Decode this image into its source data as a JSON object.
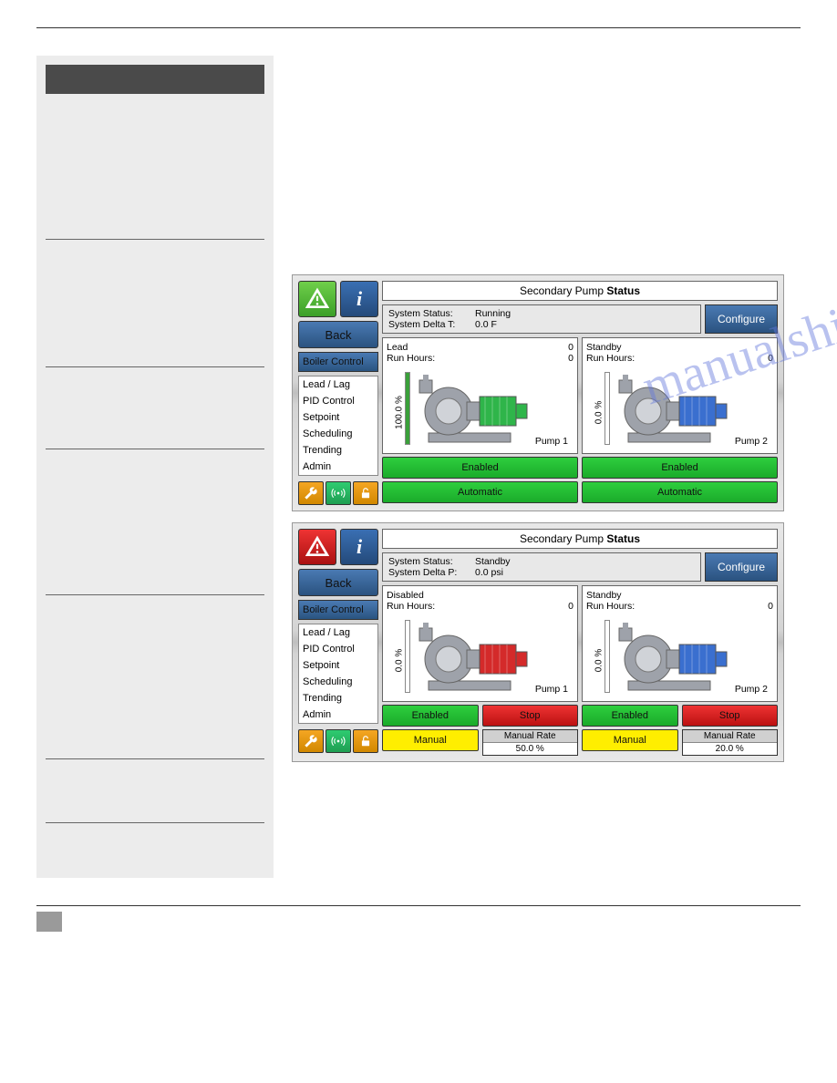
{
  "colors": {
    "panel_bg_metal": "#d4d4d4",
    "btn_blue": "#3a6fb3",
    "btn_green": "#2ece3e",
    "btn_red": "#e33333",
    "btn_yellow": "#ffee00",
    "btn_orange": "#f5a623",
    "pump_green": "#2fb54a",
    "pump_blue": "#3a6fcf",
    "pump_red": "#d42a2a",
    "pump_grey": "#a0a4ac"
  },
  "nav": {
    "back": "Back",
    "header": "Boiler Control",
    "items": [
      "Lead / Lag",
      "PID Control",
      "Setpoint",
      "Scheduling",
      "Trending",
      "Admin"
    ]
  },
  "panel1": {
    "title_prefix": "Secondary Pump ",
    "title_bold": "Status",
    "status": {
      "l1_label": "System Status:",
      "l1_val": "Running",
      "l2_label": "System Delta T:",
      "l2_val": "0.0 F"
    },
    "configure": "Configure",
    "pumps": [
      {
        "state": "Lead",
        "state_val": "0",
        "hours_label": "Run Hours:",
        "hours_val": "0",
        "pct_text": "100.0 %",
        "pct_fill": 100,
        "name": "Pump  1",
        "color": "#2fb54a",
        "btn1": "Enabled",
        "btn2": "Automatic",
        "mode": "auto"
      },
      {
        "state": "Standby",
        "state_val": "",
        "hours_label": "Run Hours:",
        "hours_val": "0",
        "pct_text": "0.0 %",
        "pct_fill": 0,
        "name": "Pump  2",
        "color": "#3a6fcf",
        "btn1": "Enabled",
        "btn2": "Automatic",
        "mode": "auto"
      }
    ]
  },
  "panel2": {
    "title_prefix": "Secondary Pump ",
    "title_bold": "Status",
    "alert": "red",
    "status": {
      "l1_label": "System Status:",
      "l1_val": "Standby",
      "l2_label": "System Delta P:",
      "l2_val": "0.0 psi"
    },
    "configure": "Configure",
    "pumps": [
      {
        "state": "Disabled",
        "state_val": "",
        "hours_label": "Run Hours:",
        "hours_val": "0",
        "pct_text": "0.0 %",
        "pct_fill": 0,
        "name": "Pump  1",
        "color": "#d42a2a",
        "btn1": "Enabled",
        "btn_stop": "Stop",
        "btn_mode": "Manual",
        "rate_label": "Manual Rate",
        "rate_val": "50.0 %",
        "mode": "manual"
      },
      {
        "state": "Standby",
        "state_val": "",
        "hours_label": "Run Hours:",
        "hours_val": "0",
        "pct_text": "0.0 %",
        "pct_fill": 0,
        "name": "Pump  2",
        "color": "#3a6fcf",
        "btn1": "Enabled",
        "btn_stop": "Stop",
        "btn_mode": "Manual",
        "rate_label": "Manual Rate",
        "rate_val": "20.0 %",
        "mode": "manual"
      }
    ]
  },
  "watermark": "manualshive.com"
}
